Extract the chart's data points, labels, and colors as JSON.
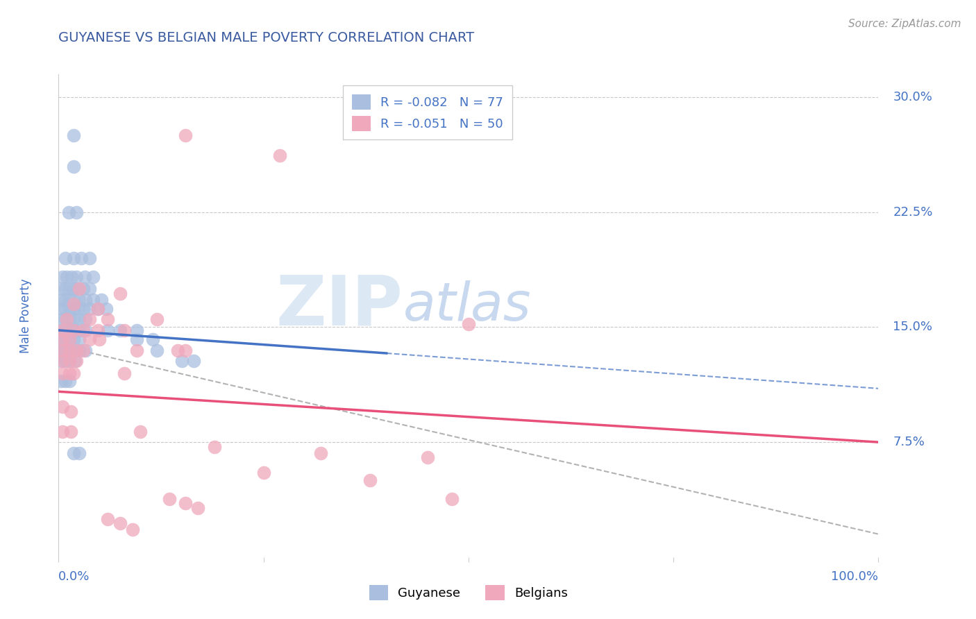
{
  "title": "GUYANESE VS BELGIAN MALE POVERTY CORRELATION CHART",
  "source": "Source: ZipAtlas.com",
  "ylabel": "Male Poverty",
  "ytick_positions": [
    0.075,
    0.15,
    0.225,
    0.3
  ],
  "ytick_labels": [
    "7.5%",
    "15.0%",
    "22.5%",
    "30.0%"
  ],
  "xlim": [
    0.0,
    1.0
  ],
  "ylim": [
    0.0,
    0.315
  ],
  "title_color": "#3a5aa0",
  "axis_color": "#4472c4",
  "source_color": "#999999",
  "blue_scatter": [
    [
      0.018,
      0.275
    ],
    [
      0.018,
      0.255
    ],
    [
      0.012,
      0.225
    ],
    [
      0.022,
      0.225
    ],
    [
      0.008,
      0.195
    ],
    [
      0.018,
      0.195
    ],
    [
      0.028,
      0.195
    ],
    [
      0.038,
      0.195
    ],
    [
      0.005,
      0.183
    ],
    [
      0.01,
      0.183
    ],
    [
      0.016,
      0.183
    ],
    [
      0.022,
      0.183
    ],
    [
      0.032,
      0.183
    ],
    [
      0.042,
      0.183
    ],
    [
      0.003,
      0.175
    ],
    [
      0.008,
      0.175
    ],
    [
      0.013,
      0.175
    ],
    [
      0.018,
      0.175
    ],
    [
      0.023,
      0.175
    ],
    [
      0.03,
      0.175
    ],
    [
      0.038,
      0.175
    ],
    [
      0.003,
      0.168
    ],
    [
      0.008,
      0.168
    ],
    [
      0.013,
      0.168
    ],
    [
      0.018,
      0.168
    ],
    [
      0.025,
      0.168
    ],
    [
      0.033,
      0.168
    ],
    [
      0.042,
      0.168
    ],
    [
      0.052,
      0.168
    ],
    [
      0.003,
      0.162
    ],
    [
      0.008,
      0.162
    ],
    [
      0.013,
      0.162
    ],
    [
      0.018,
      0.162
    ],
    [
      0.023,
      0.162
    ],
    [
      0.03,
      0.162
    ],
    [
      0.038,
      0.162
    ],
    [
      0.048,
      0.162
    ],
    [
      0.058,
      0.162
    ],
    [
      0.003,
      0.155
    ],
    [
      0.008,
      0.155
    ],
    [
      0.013,
      0.155
    ],
    [
      0.018,
      0.155
    ],
    [
      0.025,
      0.155
    ],
    [
      0.033,
      0.155
    ],
    [
      0.003,
      0.148
    ],
    [
      0.008,
      0.148
    ],
    [
      0.013,
      0.148
    ],
    [
      0.018,
      0.148
    ],
    [
      0.025,
      0.148
    ],
    [
      0.033,
      0.148
    ],
    [
      0.06,
      0.148
    ],
    [
      0.075,
      0.148
    ],
    [
      0.095,
      0.148
    ],
    [
      0.003,
      0.142
    ],
    [
      0.008,
      0.142
    ],
    [
      0.013,
      0.142
    ],
    [
      0.018,
      0.142
    ],
    [
      0.025,
      0.142
    ],
    [
      0.095,
      0.142
    ],
    [
      0.115,
      0.142
    ],
    [
      0.003,
      0.135
    ],
    [
      0.008,
      0.135
    ],
    [
      0.013,
      0.135
    ],
    [
      0.018,
      0.135
    ],
    [
      0.025,
      0.135
    ],
    [
      0.033,
      0.135
    ],
    [
      0.12,
      0.135
    ],
    [
      0.003,
      0.128
    ],
    [
      0.008,
      0.128
    ],
    [
      0.013,
      0.128
    ],
    [
      0.02,
      0.128
    ],
    [
      0.15,
      0.128
    ],
    [
      0.165,
      0.128
    ],
    [
      0.003,
      0.115
    ],
    [
      0.008,
      0.115
    ],
    [
      0.013,
      0.115
    ],
    [
      0.018,
      0.068
    ],
    [
      0.025,
      0.068
    ]
  ],
  "pink_scatter": [
    [
      0.155,
      0.275
    ],
    [
      0.27,
      0.262
    ],
    [
      0.025,
      0.175
    ],
    [
      0.075,
      0.172
    ],
    [
      0.018,
      0.165
    ],
    [
      0.048,
      0.162
    ],
    [
      0.01,
      0.155
    ],
    [
      0.038,
      0.155
    ],
    [
      0.06,
      0.155
    ],
    [
      0.12,
      0.155
    ],
    [
      0.005,
      0.148
    ],
    [
      0.018,
      0.148
    ],
    [
      0.03,
      0.148
    ],
    [
      0.048,
      0.148
    ],
    [
      0.08,
      0.148
    ],
    [
      0.005,
      0.142
    ],
    [
      0.013,
      0.142
    ],
    [
      0.038,
      0.142
    ],
    [
      0.05,
      0.142
    ],
    [
      0.005,
      0.135
    ],
    [
      0.013,
      0.135
    ],
    [
      0.022,
      0.135
    ],
    [
      0.03,
      0.135
    ],
    [
      0.095,
      0.135
    ],
    [
      0.145,
      0.135
    ],
    [
      0.155,
      0.135
    ],
    [
      0.005,
      0.128
    ],
    [
      0.013,
      0.128
    ],
    [
      0.022,
      0.128
    ],
    [
      0.005,
      0.12
    ],
    [
      0.013,
      0.12
    ],
    [
      0.018,
      0.12
    ],
    [
      0.08,
      0.12
    ],
    [
      0.5,
      0.152
    ],
    [
      0.005,
      0.098
    ],
    [
      0.015,
      0.095
    ],
    [
      0.005,
      0.082
    ],
    [
      0.015,
      0.082
    ],
    [
      0.1,
      0.082
    ],
    [
      0.19,
      0.072
    ],
    [
      0.32,
      0.068
    ],
    [
      0.45,
      0.065
    ],
    [
      0.25,
      0.055
    ],
    [
      0.38,
      0.05
    ],
    [
      0.135,
      0.038
    ],
    [
      0.155,
      0.035
    ],
    [
      0.17,
      0.032
    ],
    [
      0.06,
      0.025
    ],
    [
      0.075,
      0.022
    ],
    [
      0.09,
      0.018
    ],
    [
      0.48,
      0.038
    ]
  ],
  "blue_line_solid": {
    "x": [
      0.0,
      0.4
    ],
    "y": [
      0.148,
      0.133
    ]
  },
  "blue_line_dashed": {
    "x": [
      0.4,
      1.0
    ],
    "y": [
      0.133,
      0.11
    ]
  },
  "pink_line": {
    "x": [
      0.0,
      1.0
    ],
    "y": [
      0.108,
      0.075
    ]
  },
  "gray_dashed_line": {
    "x": [
      0.0,
      1.0
    ],
    "y": [
      0.138,
      0.015
    ]
  },
  "background_color": "#ffffff",
  "grid_color": "#c8c8c8",
  "watermark_zip": "ZIP",
  "watermark_atlas": "atlas",
  "watermark_color": "#dde8f5"
}
